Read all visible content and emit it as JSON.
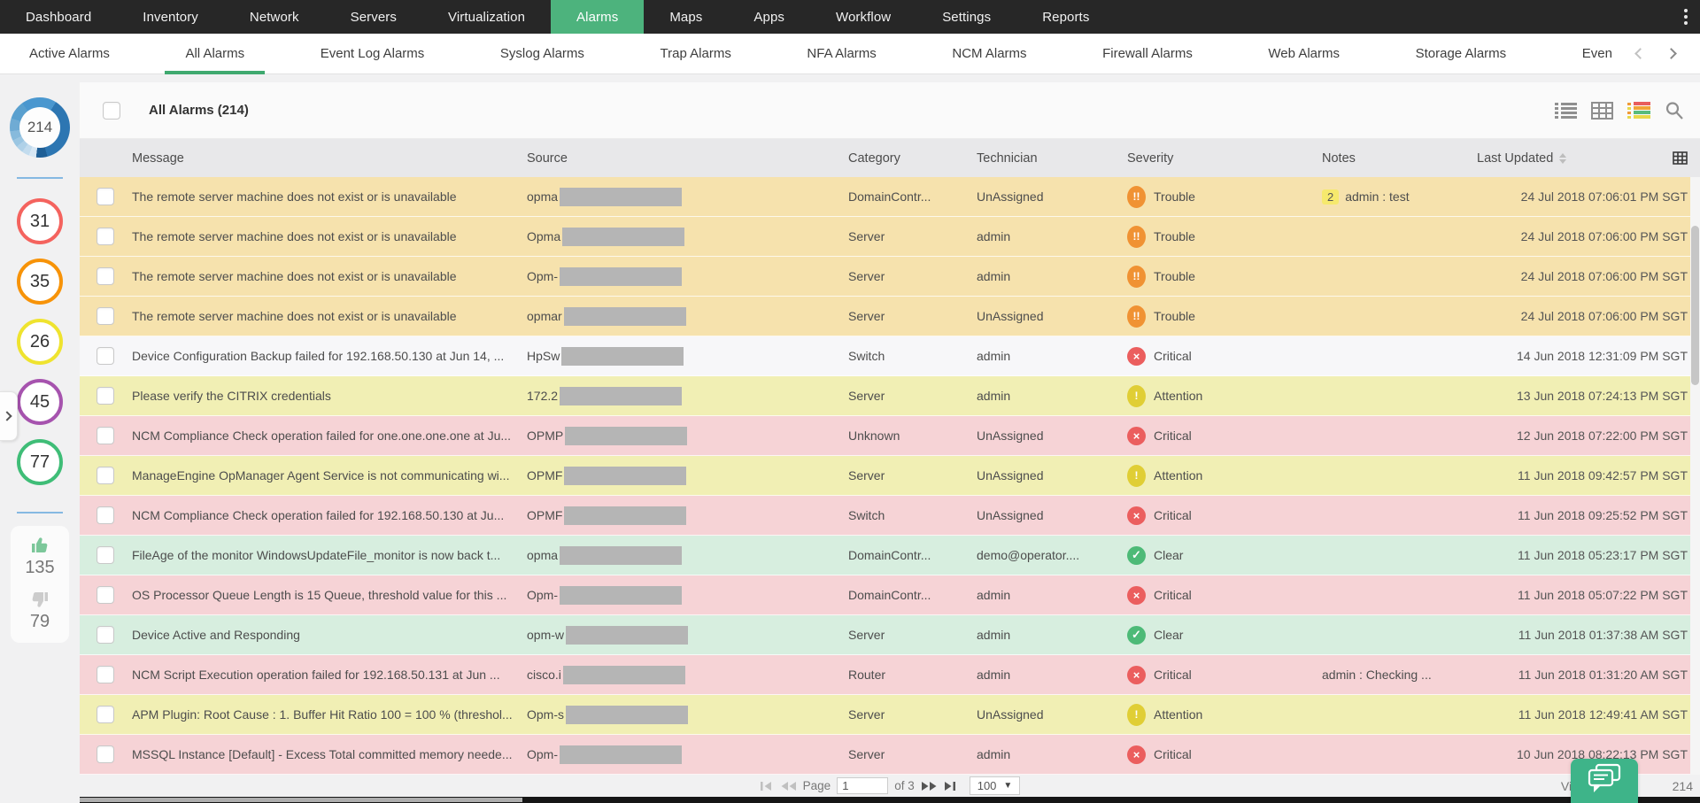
{
  "nav": {
    "items": [
      {
        "label": "Dashboard",
        "active": false
      },
      {
        "label": "Inventory",
        "active": false
      },
      {
        "label": "Network",
        "active": false
      },
      {
        "label": "Servers",
        "active": false
      },
      {
        "label": "Virtualization",
        "active": false
      },
      {
        "label": "Alarms",
        "active": true
      },
      {
        "label": "Maps",
        "active": false
      },
      {
        "label": "Apps",
        "active": false
      },
      {
        "label": "Workflow",
        "active": false
      },
      {
        "label": "Settings",
        "active": false
      },
      {
        "label": "Reports",
        "active": false
      }
    ]
  },
  "tabs": {
    "items": [
      {
        "label": "Active Alarms",
        "active": false
      },
      {
        "label": "All Alarms",
        "active": true
      },
      {
        "label": "Event Log Alarms",
        "active": false
      },
      {
        "label": "Syslog Alarms",
        "active": false
      },
      {
        "label": "Trap Alarms",
        "active": false
      },
      {
        "label": "NFA Alarms",
        "active": false
      },
      {
        "label": "NCM Alarms",
        "active": false
      },
      {
        "label": "Firewall Alarms",
        "active": false
      },
      {
        "label": "Web Alarms",
        "active": false
      },
      {
        "label": "Storage Alarms",
        "active": false
      },
      {
        "label": "Even",
        "active": false
      }
    ]
  },
  "sidebar": {
    "total_alarms": "214",
    "severity_counts": [
      {
        "value": "31",
        "color": "#f4635e"
      },
      {
        "value": "35",
        "color": "#f79308"
      },
      {
        "value": "26",
        "color": "#efe32f"
      },
      {
        "value": "45",
        "color": "#a653ae"
      },
      {
        "value": "77",
        "color": "#3fbd77"
      }
    ],
    "acknowledged_count": "135",
    "unacknowledged_count": "79"
  },
  "toolbar": {
    "title": "All Alarms (214)"
  },
  "colors": {
    "accent_green": "#4db37d",
    "row_tones": {
      "trouble": "#f6e2ad",
      "plain": "#f7f7f9",
      "attention": "#f1efb4",
      "critical": "#f6d3d6",
      "clear": "#d7eedf"
    }
  },
  "severity_styles": {
    "trouble": {
      "color": "#f09233",
      "glyph": "!!",
      "shape": "oval"
    },
    "critical": {
      "color": "#eb5e5e",
      "glyph": "×",
      "shape": "round"
    },
    "attention": {
      "color": "#e0ce35",
      "glyph": "!",
      "shape": "oval"
    },
    "clear": {
      "color": "#4dba77",
      "glyph": "✓",
      "shape": "round"
    }
  },
  "table": {
    "columns": [
      "Message",
      "Source",
      "Category",
      "Technician",
      "Severity",
      "Notes",
      "Last Updated"
    ],
    "rows": [
      {
        "message": "The remote server machine does not exist or is unavailable",
        "source_prefix": "opma",
        "category": "DomainContr...",
        "technician": "UnAssigned",
        "severity": "Trouble",
        "severity_type": "trouble",
        "note_badge": "2",
        "note": "admin : test",
        "last_updated": "24 Jul 2018 07:06:01 PM SGT",
        "tone": "trouble"
      },
      {
        "message": "The remote server machine does not exist or is unavailable",
        "source_prefix": "Opma",
        "category": "Server",
        "technician": "admin",
        "severity": "Trouble",
        "severity_type": "trouble",
        "note_badge": "",
        "note": "",
        "last_updated": "24 Jul 2018 07:06:00 PM SGT",
        "tone": "trouble"
      },
      {
        "message": "The remote server machine does not exist or is unavailable",
        "source_prefix": "Opm-",
        "category": "Server",
        "technician": "admin",
        "severity": "Trouble",
        "severity_type": "trouble",
        "note_badge": "",
        "note": "",
        "last_updated": "24 Jul 2018 07:06:00 PM SGT",
        "tone": "trouble"
      },
      {
        "message": "The remote server machine does not exist or is unavailable",
        "source_prefix": "opmar",
        "category": "Server",
        "technician": "UnAssigned",
        "severity": "Trouble",
        "severity_type": "trouble",
        "note_badge": "",
        "note": "",
        "last_updated": "24 Jul 2018 07:06:00 PM SGT",
        "tone": "trouble"
      },
      {
        "message": "Device Configuration Backup failed for 192.168.50.130 at Jun 14, ...",
        "source_prefix": "HpSw",
        "category": "Switch",
        "technician": "admin",
        "severity": "Critical",
        "severity_type": "critical",
        "note_badge": "",
        "note": "",
        "last_updated": "14 Jun 2018 12:31:09 PM SGT",
        "tone": "plain"
      },
      {
        "message": "Please verify the CITRIX credentials",
        "source_prefix": "172.2",
        "category": "Server",
        "technician": "admin",
        "severity": "Attention",
        "severity_type": "attention",
        "note_badge": "",
        "note": "",
        "last_updated": "13 Jun 2018 07:24:13 PM SGT",
        "tone": "attention"
      },
      {
        "message": "NCM Compliance Check operation failed for one.one.one.one at Ju...",
        "source_prefix": "OPMP",
        "category": "Unknown",
        "technician": "UnAssigned",
        "severity": "Critical",
        "severity_type": "critical",
        "note_badge": "",
        "note": "",
        "last_updated": "12 Jun 2018 07:22:00 PM SGT",
        "tone": "critical"
      },
      {
        "message": "ManageEngine OpManager Agent Service is not communicating wi...",
        "source_prefix": "OPMF",
        "category": "Server",
        "technician": "UnAssigned",
        "severity": "Attention",
        "severity_type": "attention",
        "note_badge": "",
        "note": "",
        "last_updated": "11 Jun 2018 09:42:57 PM SGT",
        "tone": "attention"
      },
      {
        "message": "NCM Compliance Check operation failed for 192.168.50.130 at Ju...",
        "source_prefix": "OPMF",
        "category": "Switch",
        "technician": "UnAssigned",
        "severity": "Critical",
        "severity_type": "critical",
        "note_badge": "",
        "note": "",
        "last_updated": "11 Jun 2018 09:25:52 PM SGT",
        "tone": "critical"
      },
      {
        "message": "FileAge of the monitor WindowsUpdateFile_monitor is now back t...",
        "source_prefix": "opma",
        "category": "DomainContr...",
        "technician": "demo@operator....",
        "severity": "Clear",
        "severity_type": "clear",
        "note_badge": "",
        "note": "",
        "last_updated": "11 Jun 2018 05:23:17 PM SGT",
        "tone": "clear"
      },
      {
        "message": "OS Processor Queue Length is 15 Queue, threshold value for this ...",
        "source_prefix": "Opm-",
        "category": "DomainContr...",
        "technician": "admin",
        "severity": "Critical",
        "severity_type": "critical",
        "note_badge": "",
        "note": "",
        "last_updated": "11 Jun 2018 05:07:22 PM SGT",
        "tone": "critical"
      },
      {
        "message": "Device Active and Responding",
        "source_prefix": "opm-w",
        "category": "Server",
        "technician": "admin",
        "severity": "Clear",
        "severity_type": "clear",
        "note_badge": "",
        "note": "",
        "last_updated": "11 Jun 2018 01:37:38 AM SGT",
        "tone": "clear"
      },
      {
        "message": "NCM Script Execution operation failed for 192.168.50.131 at Jun ...",
        "source_prefix": "cisco.i",
        "category": "Router",
        "technician": "admin",
        "severity": "Critical",
        "severity_type": "critical",
        "note_badge": "",
        "note": "admin : Checking ...",
        "last_updated": "11 Jun 2018 01:31:20 AM SGT",
        "tone": "critical"
      },
      {
        "message": "APM Plugin: Root Cause : 1. Buffer Hit Ratio 100 = 100 % (threshol...",
        "source_prefix": "Opm-s",
        "category": "Server",
        "technician": "UnAssigned",
        "severity": "Attention",
        "severity_type": "attention",
        "note_badge": "",
        "note": "",
        "last_updated": "11 Jun 2018 12:49:41 AM SGT",
        "tone": "attention"
      },
      {
        "message": "MSSQL Instance [Default] - Excess Total committed memory neede...",
        "source_prefix": "Opm-",
        "category": "Server",
        "technician": "admin",
        "severity": "Critical",
        "severity_type": "critical",
        "note_badge": "",
        "note": "",
        "last_updated": "10 Jun 2018 08:22:13 PM SGT",
        "tone": "critical"
      }
    ]
  },
  "pagination": {
    "page_label": "Page",
    "page_value": "1",
    "of_label": "of 3",
    "page_size": "100",
    "view_prefix": "View 1",
    "view_suffix": "214"
  }
}
